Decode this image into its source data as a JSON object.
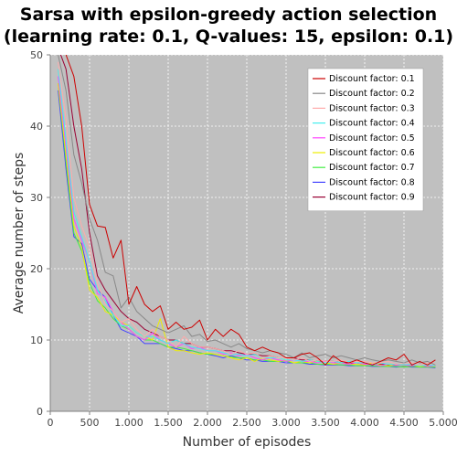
{
  "chart_data": {
    "type": "line",
    "title_lines": [
      "Sarsa with epsilon-greedy action selection",
      "(learning rate: 0.1, Q-values: 15, epsilon: 0.1)"
    ],
    "xlabel": "Number of episodes",
    "ylabel": "Average number of steps",
    "xlim": [
      0,
      5000
    ],
    "ylim": [
      0,
      50
    ],
    "xticks": [
      0,
      500,
      1000,
      1500,
      2000,
      2500,
      3000,
      3500,
      4000,
      4500,
      5000
    ],
    "xtick_labels": [
      "0",
      "500",
      "1.000",
      "1.500",
      "2.000",
      "2.500",
      "3.000",
      "3.500",
      "4.000",
      "4.500",
      "5.000"
    ],
    "yticks": [
      0,
      10,
      20,
      30,
      40,
      50
    ],
    "ytick_labels": [
      "0",
      "10",
      "20",
      "30",
      "40",
      "50"
    ],
    "grid": true,
    "legend_position": "top-right",
    "x": [
      100,
      200,
      300,
      400,
      500,
      600,
      700,
      800,
      900,
      1000,
      1100,
      1200,
      1300,
      1400,
      1500,
      1600,
      1700,
      1800,
      1900,
      2000,
      2100,
      2200,
      2300,
      2400,
      2500,
      2600,
      2700,
      2800,
      2900,
      3000,
      3100,
      3200,
      3300,
      3400,
      3500,
      3600,
      3700,
      3800,
      3900,
      4000,
      4100,
      4200,
      4300,
      4400,
      4500,
      4600,
      4700,
      4800,
      4900
    ],
    "series": [
      {
        "name": "Discount factor: 0.1",
        "color": "#cc0000",
        "values": [
          52,
          50,
          47,
          40,
          29,
          26,
          25.8,
          21.5,
          24,
          15,
          17.5,
          15,
          14,
          14.8,
          11.5,
          12.5,
          11.5,
          11.8,
          12.8,
          10,
          11.5,
          10.5,
          11.5,
          10.8,
          9,
          8.5,
          9,
          8.5,
          8.2,
          7.5,
          7.5,
          8,
          8.2,
          7.5,
          6.5,
          7.8,
          7,
          6.8,
          7.2,
          6.8,
          6.5,
          7,
          7.5,
          7.2,
          8,
          6.5,
          7,
          6.5,
          7.2
        ]
      },
      {
        "name": "Discount factor: 0.2",
        "color": "#888888",
        "values": [
          50,
          45,
          36,
          32,
          27,
          24,
          19.5,
          19,
          14.5,
          16,
          14,
          13,
          12,
          11.5,
          11,
          11.5,
          12,
          10.5,
          10.8,
          9.8,
          10,
          9.5,
          9,
          9.5,
          8.8,
          8.5,
          8.2,
          8.5,
          8.2,
          8,
          7.5,
          8.2,
          7.5,
          7.8,
          8,
          7.5,
          7.8,
          7.5,
          7.2,
          7.5,
          7.2,
          7,
          7.2,
          7,
          6.8,
          7.2,
          6.8,
          7,
          6.5
        ]
      },
      {
        "name": "Discount factor: 0.3",
        "color": "#ffaaaa",
        "values": [
          49,
          41,
          30,
          26,
          23,
          18,
          15,
          14,
          12.5,
          13,
          11.5,
          10.5,
          11.5,
          10.5,
          10,
          9,
          10.5,
          9.5,
          9,
          9,
          8.8,
          8.5,
          8,
          8.5,
          8,
          8.2,
          7.5,
          7.8,
          7.5,
          7.5,
          7.2,
          7.5,
          7,
          7.2,
          7,
          7,
          7.2,
          6.8,
          7,
          7,
          6.8,
          6.8,
          7,
          6.6,
          6.8,
          6.8,
          6.5,
          6.8,
          6.6
        ]
      },
      {
        "name": "Discount factor: 0.4",
        "color": "#44eeee",
        "values": [
          48,
          38,
          28,
          24.5,
          21,
          17,
          15.5,
          13.5,
          12,
          12,
          11,
          10.5,
          10.5,
          10,
          9.5,
          10,
          9.5,
          9,
          8.8,
          8.5,
          8.5,
          8.2,
          8,
          8,
          7.8,
          8,
          7.5,
          7.5,
          7.5,
          7.2,
          7.2,
          7,
          7.2,
          7,
          6.8,
          7,
          6.8,
          7,
          6.8,
          6.8,
          6.5,
          6.8,
          6.6,
          6.6,
          6.5,
          6.6,
          6.4,
          6.5,
          6.4
        ]
      },
      {
        "name": "Discount factor: 0.5",
        "color": "#ff44ff",
        "values": [
          47,
          37,
          27,
          24,
          21,
          16.5,
          16,
          14,
          12.5,
          11.5,
          10.5,
          10,
          11,
          10,
          9.5,
          9,
          9.5,
          8.8,
          9,
          8.5,
          8.5,
          8,
          8.2,
          7.8,
          8,
          7.5,
          7.2,
          7.5,
          7.2,
          7,
          7.2,
          7,
          7,
          6.8,
          7,
          6.8,
          6.8,
          6.6,
          6.8,
          6.6,
          6.6,
          6.4,
          6.6,
          6.5,
          6.5,
          6.4,
          6.5,
          6.3,
          6.4
        ]
      },
      {
        "name": "Discount factor: 0.6",
        "color": "#eeee00",
        "values": [
          46,
          36,
          26,
          23,
          17,
          16,
          14,
          13.5,
          12.5,
          12,
          11,
          10.5,
          10,
          13,
          9,
          8.5,
          8.5,
          8.2,
          8,
          8.2,
          8,
          7.8,
          7.5,
          7.2,
          7.5,
          7,
          7.5,
          7.2,
          7,
          7.2,
          6.8,
          7,
          6.8,
          7,
          6.8,
          6.6,
          6.8,
          6.6,
          6.6,
          6.5,
          6.8,
          6.5,
          6.4,
          6.6,
          6.4,
          6.5,
          6.3,
          6.4,
          6.3
        ]
      },
      {
        "name": "Discount factor: 0.7",
        "color": "#44ee44",
        "values": [
          46,
          35,
          25,
          22.5,
          18,
          15.5,
          14.5,
          13,
          12,
          11.5,
          10.5,
          10,
          10,
          9.5,
          9,
          9,
          8.8,
          8.5,
          8.2,
          8,
          8,
          7.8,
          7.6,
          7.5,
          7.5,
          7.2,
          7.2,
          7,
          7,
          7,
          6.8,
          6.8,
          6.8,
          6.6,
          6.6,
          6.6,
          6.5,
          6.5,
          6.4,
          6.4,
          6.4,
          6.3,
          6.3,
          6.3,
          6.2,
          6.3,
          6.2,
          6.2,
          6.2
        ]
      },
      {
        "name": "Discount factor: 0.8",
        "color": "#4444ff",
        "values": [
          45,
          34,
          24.5,
          23.5,
          18.5,
          17,
          16,
          13.5,
          11.5,
          11,
          10.5,
          9.5,
          9.5,
          9.5,
          9,
          8.8,
          8.5,
          8.5,
          8.2,
          8,
          7.8,
          7.5,
          7.8,
          7.5,
          7.2,
          7.2,
          7,
          7,
          7,
          6.8,
          6.8,
          6.8,
          6.6,
          6.6,
          6.5,
          6.5,
          6.5,
          6.4,
          6.4,
          6.4,
          6.3,
          6.3,
          6.3,
          6.2,
          6.3,
          6.2,
          6.2,
          6.2,
          6.1
        ]
      },
      {
        "name": "Discount factor: 0.9",
        "color": "#990033",
        "values": [
          51,
          48,
          40,
          34,
          25,
          19,
          17,
          15.5,
          14,
          13,
          12.5,
          11.5,
          11,
          10.5,
          10,
          10,
          9.5,
          9.5,
          9,
          9,
          8.8,
          8.5,
          8.5,
          8.2,
          8,
          8,
          7.8,
          7.8,
          7.5,
          7.5,
          7.5,
          7.2,
          7.2,
          7,
          7,
          7,
          6.8,
          6.8,
          6.8,
          6.6,
          6.6,
          6.6,
          6.5,
          6.5,
          6.5,
          6.4,
          6.4,
          6.4,
          6.3
        ]
      }
    ]
  }
}
